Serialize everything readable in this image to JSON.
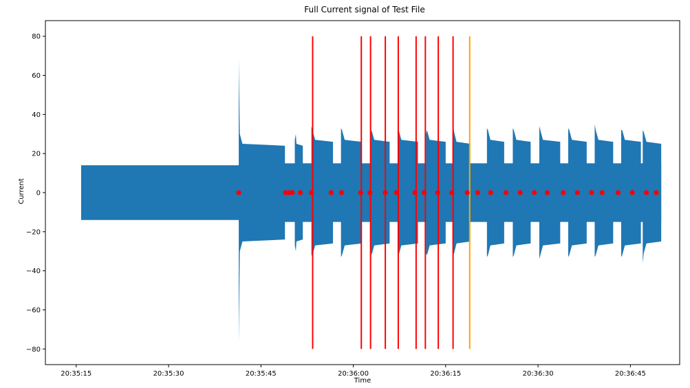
{
  "chart_data": {
    "type": "line",
    "title": "Full Current signal of Test File",
    "xlabel": "Time",
    "ylabel": "Current",
    "xlim": [
      "20:35:10",
      "20:36:53"
    ],
    "ylim": [
      -88,
      88
    ],
    "x_ticks": [
      "20:35:15",
      "20:35:30",
      "20:35:45",
      "20:36:00",
      "20:36:15",
      "20:36:30",
      "20:36:45"
    ],
    "y_ticks": [
      -80,
      -60,
      -40,
      -20,
      0,
      20,
      40,
      60,
      80
    ],
    "grid": false,
    "signal": {
      "name": "Current",
      "color": "#1f77b4",
      "start": "20:35:15.8",
      "end": "20:36:50",
      "envelope": [
        {
          "t": "20:35:15.8",
          "upper": 14,
          "lower": -14
        },
        {
          "t": "20:35:41.4",
          "upper": 14,
          "lower": -14
        },
        {
          "t": "20:35:41.5",
          "upper": 68,
          "lower": -77
        },
        {
          "t": "20:35:42.0",
          "upper": 34,
          "lower": -34
        },
        {
          "t": "20:35:49.0",
          "upper": 25,
          "lower": -25
        }
      ],
      "bursts": [
        {
          "start": "20:35:41.4",
          "end": "20:35:48.9",
          "peak_upper": 68,
          "peak_lower": -77,
          "level_upper": 24,
          "level_lower": -24
        },
        {
          "start": "20:35:50.5",
          "end": "20:35:51.8",
          "peak_upper": 27,
          "peak_lower": -27,
          "level_upper": 24,
          "level_lower": -24
        },
        {
          "start": "20:35:53.2",
          "end": "20:35:56.7",
          "peak_upper": 34,
          "peak_lower": -32,
          "level_upper": 26,
          "level_lower": -26
        },
        {
          "start": "20:35:58.0",
          "end": "20:36:01.4",
          "peak_upper": 33,
          "peak_lower": -33,
          "level_upper": 26,
          "level_lower": -26
        },
        {
          "start": "20:36:02.8",
          "end": "20:36:05.9",
          "peak_upper": 29,
          "peak_lower": -28,
          "level_upper": 26,
          "level_lower": -26
        },
        {
          "start": "20:36:07.2",
          "end": "20:36:10.5",
          "peak_upper": 33,
          "peak_lower": -34,
          "level_upper": 26,
          "level_lower": -26
        },
        {
          "start": "20:36:11.8",
          "end": "20:36:15.0",
          "peak_upper": 30,
          "peak_lower": -31,
          "level_upper": 26,
          "level_lower": -26
        },
        {
          "start": "20:36:16.2",
          "end": "20:36:19.0",
          "peak_upper": 36,
          "peak_lower": -33,
          "level_upper": 25,
          "level_lower": -25
        },
        {
          "start": "20:36:21.7",
          "end": "20:36:24.5",
          "peak_upper": 33,
          "peak_lower": -33,
          "level_upper": 26,
          "level_lower": -26
        },
        {
          "start": "20:36:25.9",
          "end": "20:36:28.8",
          "peak_upper": 33,
          "peak_lower": -33,
          "level_upper": 26,
          "level_lower": -26
        },
        {
          "start": "20:36:30.2",
          "end": "20:36:33.6",
          "peak_upper": 34,
          "peak_lower": -34,
          "level_upper": 26,
          "level_lower": -26
        },
        {
          "start": "20:36:34.9",
          "end": "20:36:37.9",
          "peak_upper": 33,
          "peak_lower": -33,
          "level_upper": 26,
          "level_lower": -26
        },
        {
          "start": "20:36:39.2",
          "end": "20:36:42.2",
          "peak_upper": 35,
          "peak_lower": -33,
          "level_upper": 26,
          "level_lower": -26
        },
        {
          "start": "20:36:43.5",
          "end": "20:36:46.7",
          "peak_upper": 32,
          "peak_lower": -33,
          "level_upper": 26,
          "level_lower": -26
        },
        {
          "start": "20:36:47.0",
          "end": "20:36:50.0",
          "peak_upper": 32,
          "peak_lower": -36,
          "level_upper": 25,
          "level_lower": -25
        }
      ],
      "gap_level": 15,
      "gap_level_final": 15
    },
    "markers": {
      "color": "#ff0000",
      "y": 0,
      "x": [
        "20:35:41.4",
        "20:35:49.0",
        "20:35:49.6",
        "20:35:50.1",
        "20:35:51.4",
        "20:35:53.2",
        "20:35:56.4",
        "20:35:58.1",
        "20:36:01.2",
        "20:36:02.7",
        "20:36:05.2",
        "20:36:07.0",
        "20:36:10.0",
        "20:36:11.5",
        "20:36:13.7",
        "20:36:16.0",
        "20:36:18.5",
        "20:36:20.2",
        "20:36:22.3",
        "20:36:24.8",
        "20:36:27.1",
        "20:36:29.4",
        "20:36:31.5",
        "20:36:34.1",
        "20:36:36.4",
        "20:36:38.7",
        "20:36:40.4",
        "20:36:43.0",
        "20:36:45.3",
        "20:36:47.6",
        "20:36:49.2"
      ]
    },
    "vertical_lines": [
      {
        "x": "20:35:53.4",
        "color": "#ff0000",
        "ymin": -80,
        "ymax": 80
      },
      {
        "x": "20:36:01.3",
        "color": "#ff0000",
        "ymin": -80,
        "ymax": 80
      },
      {
        "x": "20:36:02.8",
        "color": "#ff0000",
        "ymin": -80,
        "ymax": 80
      },
      {
        "x": "20:36:05.2",
        "color": "#ff0000",
        "ymin": -80,
        "ymax": 80
      },
      {
        "x": "20:36:07.3",
        "color": "#ff0000",
        "ymin": -80,
        "ymax": 80
      },
      {
        "x": "20:36:10.2",
        "color": "#ff0000",
        "ymin": -80,
        "ymax": 80
      },
      {
        "x": "20:36:11.7",
        "color": "#ff0000",
        "ymin": -80,
        "ymax": 80
      },
      {
        "x": "20:36:13.8",
        "color": "#ff0000",
        "ymin": -80,
        "ymax": 80
      },
      {
        "x": "20:36:16.2",
        "color": "#ff0000",
        "ymin": -80,
        "ymax": 80
      },
      {
        "x": "20:36:18.9",
        "color": "#ffa500",
        "ymin": -80,
        "ymax": 80
      }
    ]
  }
}
